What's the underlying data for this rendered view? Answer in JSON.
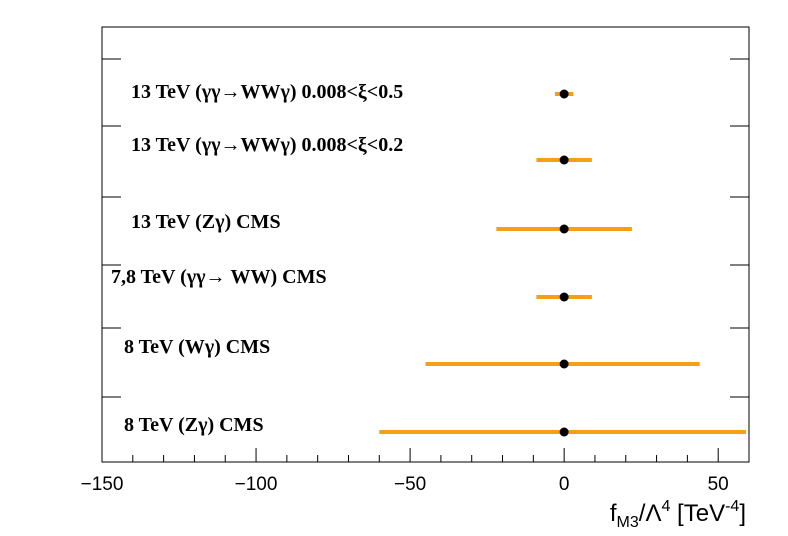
{
  "chart_data": {
    "type": "interval",
    "title": "",
    "xlabel": {
      "base": "f",
      "sub": "M3",
      "mid": "/Λ",
      "sup1": "4",
      "unit_open": " [TeV",
      "sup2": "-4",
      "unit_close": "]"
    },
    "xlim": [
      -150,
      60
    ],
    "xticks": [
      -150,
      -100,
      -50,
      0,
      50
    ],
    "xtick_labels": [
      "−150",
      "−100",
      "−50",
      "0",
      "50"
    ],
    "grid": false,
    "rows": [
      {
        "label": "13 TeV (γγ→WWγ) 0.008<ξ<0.5",
        "center": 0,
        "low": -3,
        "high": 3
      },
      {
        "label": "13 TeV (γγ→WWγ) 0.008<ξ<0.2",
        "center": 0,
        "low": -9,
        "high": 9
      },
      {
        "label": "13 TeV (Zγ) CMS",
        "center": 0,
        "low": -22,
        "high": 22
      },
      {
        "label": "7,8 TeV (γγ→ WW) CMS",
        "center": 0,
        "low": -9,
        "high": 9
      },
      {
        "label": "8 TeV (Wγ) CMS",
        "center": 0,
        "low": -45,
        "high": 44
      },
      {
        "label": "8 TeV (Zγ) CMS",
        "center": 0,
        "low": -60,
        "high": 59
      }
    ],
    "colors": {
      "bar": "#f5a014",
      "point": "#000000",
      "frame": "#000000"
    }
  }
}
